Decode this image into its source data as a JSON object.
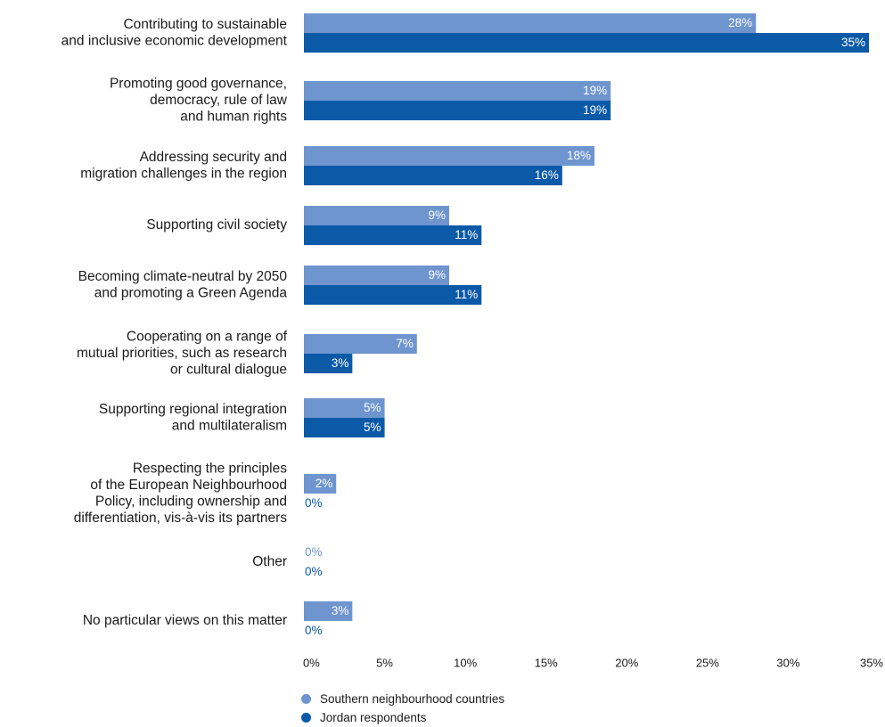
{
  "chart_data": {
    "type": "bar",
    "orientation": "horizontal",
    "categories": [
      [
        "Contributing to sustainable",
        "and inclusive economic development"
      ],
      [
        "Promoting good governance,",
        "democracy, rule of law",
        "and human rights"
      ],
      [
        "Addressing security and",
        "migration challenges in the region"
      ],
      [
        "Supporting civil society"
      ],
      [
        "Becoming climate-neutral by 2050",
        "and promoting a Green Agenda"
      ],
      [
        "Cooperating on a range of",
        "mutual priorities, such as research",
        "or cultural dialogue"
      ],
      [
        "Supporting regional integration",
        "and multilateralism"
      ],
      [
        "Respecting the principles",
        "of the European Neighbourhood",
        "Policy, including ownership and",
        "differentiation, vis-à-vis its partners"
      ],
      [
        "Other"
      ],
      [
        "No particular views on this matter"
      ]
    ],
    "series": [
      {
        "name": "Southern neighbourhood countries",
        "color": "#6f95cf",
        "values": [
          28,
          19,
          18,
          9,
          9,
          7,
          5,
          2,
          0,
          3
        ],
        "labels": [
          "28%",
          "19%",
          "18%",
          "9%",
          "9%",
          "7%",
          "5%",
          "2%",
          "0%",
          "3%"
        ]
      },
      {
        "name": "Jordan respondents",
        "color": "#0b5aa8",
        "values": [
          35,
          19,
          16,
          11,
          11,
          3,
          5,
          0,
          0,
          0
        ],
        "labels": [
          "35%",
          "19%",
          "16%",
          "11%",
          "11%",
          "3%",
          "5%",
          "0%",
          "0%",
          "0%"
        ]
      }
    ],
    "xlim": [
      0,
      35
    ],
    "xticks": [
      "0%",
      "5%",
      "10%",
      "15%",
      "20%",
      "25%",
      "30%",
      "35%"
    ],
    "grid": false,
    "legend_position": "bottom"
  }
}
